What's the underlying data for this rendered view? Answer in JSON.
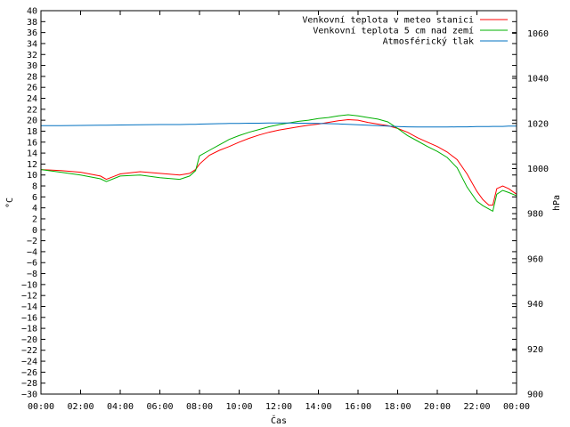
{
  "chart_data": {
    "type": "line",
    "title": "",
    "xlabel": "Čas",
    "ylabel": "°C",
    "y2label": "hPa",
    "xlim": [
      0,
      24
    ],
    "ylim": [
      -30,
      40
    ],
    "y2lim": [
      900,
      1070
    ],
    "x_ticks": [
      "00:00",
      "02:00",
      "04:00",
      "06:00",
      "08:00",
      "10:00",
      "12:00",
      "14:00",
      "16:00",
      "18:00",
      "20:00",
      "22:00",
      "00:00"
    ],
    "y_ticks": [
      40,
      38,
      36,
      34,
      32,
      30,
      28,
      26,
      24,
      22,
      20,
      18,
      16,
      14,
      12,
      10,
      8,
      6,
      4,
      2,
      0,
      -2,
      -4,
      -6,
      -8,
      -10,
      -12,
      -14,
      -16,
      -18,
      -20,
      -22,
      -24,
      -26,
      -28,
      -30
    ],
    "y2_ticks": [
      1060,
      1040,
      1020,
      1000,
      980,
      960,
      940,
      920,
      900
    ],
    "grid": false,
    "legend_position": "top-right",
    "x_hours": [
      0,
      1,
      2,
      3,
      3.3,
      4,
      5,
      6,
      7,
      7.5,
      7.8,
      8,
      8.5,
      9,
      9.5,
      10,
      10.5,
      11,
      11.5,
      12,
      12.5,
      13,
      13.5,
      14,
      14.5,
      15,
      15.5,
      16,
      16.5,
      17,
      17.5,
      18,
      18.5,
      19,
      19.5,
      20,
      20.5,
      21,
      21.5,
      22,
      22.3,
      22.6,
      22.8,
      23,
      23.3,
      23.6,
      24
    ],
    "series": [
      {
        "name": "Venkovní teplota v meteo stanici",
        "color": "#ff0000",
        "axis": "left",
        "values": [
          11,
          10.8,
          10.5,
          9.8,
          9.2,
          10.2,
          10.6,
          10.3,
          10,
          10.3,
          11,
          12,
          13.6,
          14.5,
          15.2,
          16,
          16.7,
          17.3,
          17.8,
          18.2,
          18.5,
          18.8,
          19.1,
          19.3,
          19.6,
          19.9,
          20.1,
          20,
          19.6,
          19.3,
          19,
          18.5,
          17.8,
          16.8,
          16,
          15.2,
          14.2,
          12.8,
          10.2,
          7,
          5.5,
          4.5,
          4.5,
          7.5,
          8,
          7.5,
          6.5
        ]
      },
      {
        "name": "Venkovní teplota 5 cm nad zemí",
        "color": "#00b000",
        "axis": "left",
        "values": [
          11,
          10.5,
          10,
          9.3,
          8.8,
          9.8,
          10,
          9.5,
          9.2,
          9.8,
          10.8,
          13.5,
          14.5,
          15.5,
          16.5,
          17.2,
          17.8,
          18.3,
          18.8,
          19.2,
          19.5,
          19.8,
          20,
          20.3,
          20.5,
          20.8,
          21,
          20.8,
          20.5,
          20.2,
          19.7,
          18.5,
          17.2,
          16.2,
          15.2,
          14.3,
          13.2,
          11.3,
          7.8,
          5.2,
          4.4,
          3.8,
          3.4,
          6.5,
          7.2,
          6.8,
          6.2
        ]
      },
      {
        "name": "Atmosférický tlak",
        "color": "#0070c0",
        "axis": "right",
        "values": [
          1019,
          1019,
          1019.1,
          1019.2,
          1019.2,
          1019.3,
          1019.4,
          1019.5,
          1019.5,
          1019.6,
          1019.6,
          1019.7,
          1019.8,
          1019.9,
          1020,
          1020,
          1020.1,
          1020.1,
          1020.2,
          1020.2,
          1020.2,
          1020.1,
          1020.1,
          1020,
          1019.9,
          1019.8,
          1019.6,
          1019.4,
          1019.2,
          1019,
          1018.8,
          1018.6,
          1018.5,
          1018.4,
          1018.4,
          1018.4,
          1018.4,
          1018.5,
          1018.5,
          1018.6,
          1018.6,
          1018.6,
          1018.7,
          1018.7,
          1018.7,
          1018.8,
          1018.8
        ]
      }
    ]
  }
}
